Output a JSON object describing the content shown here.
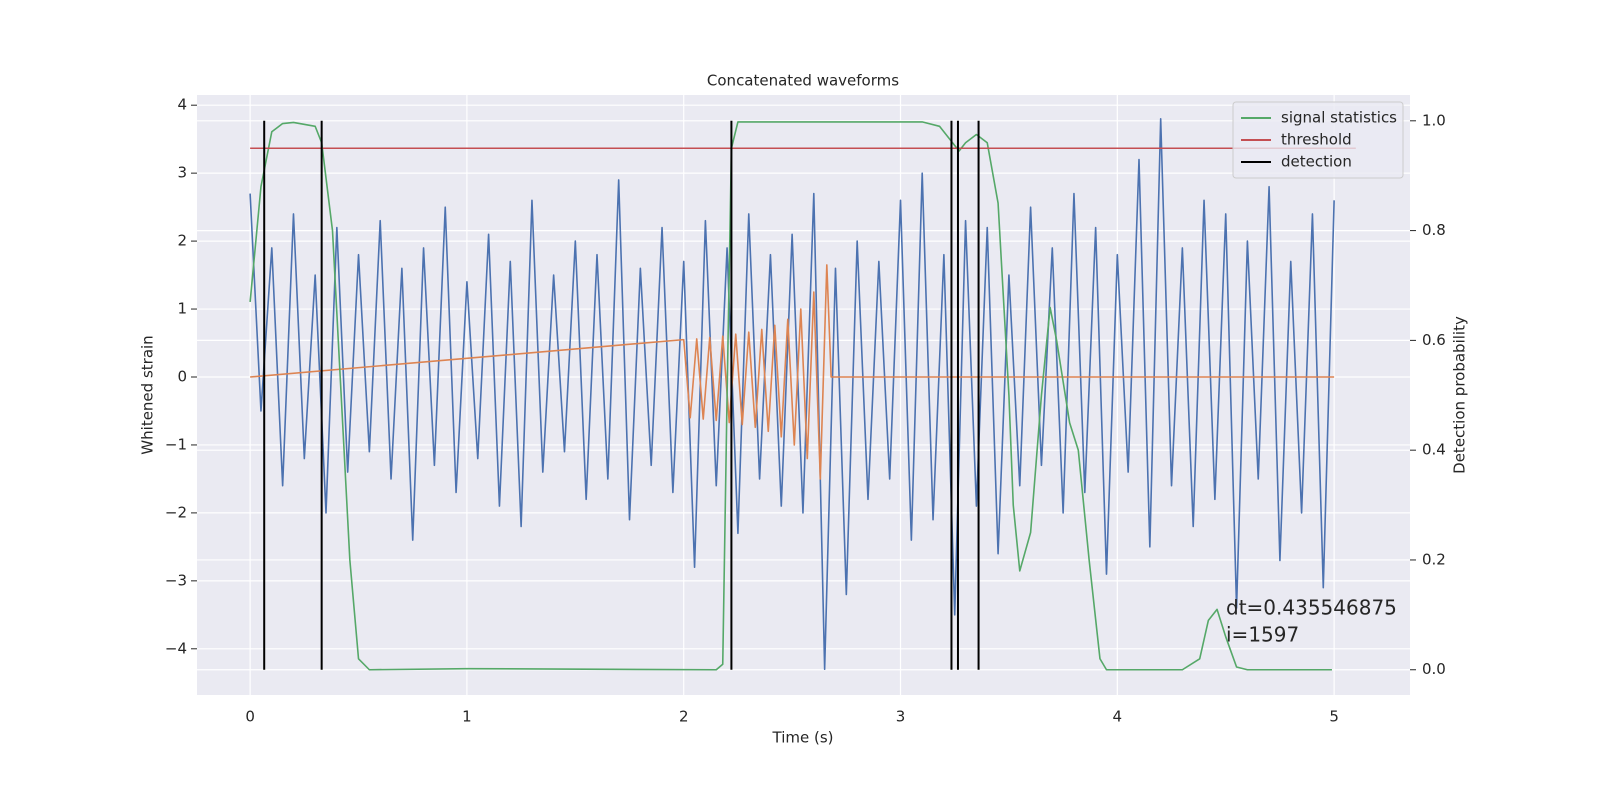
{
  "chart_data": {
    "type": "line",
    "title": "Concatenated waveforms",
    "x_label": "Time (s)",
    "y_label": "Whitened strain",
    "y2_label": "Detection probability",
    "xlim": [
      -0.245,
      5.35
    ],
    "ylim": [
      -4.68,
      4.15
    ],
    "y2lim": [
      -0.046,
      1.047
    ],
    "xticks": [
      0,
      1,
      2,
      3,
      4,
      5
    ],
    "yticks": [
      {
        "value": -4,
        "label": "−4"
      },
      {
        "value": -3,
        "label": "−3"
      },
      {
        "value": -2,
        "label": "−2"
      },
      {
        "value": -1,
        "label": "−1"
      },
      0,
      1,
      2,
      3,
      4
    ],
    "y2ticks": [
      {
        "value": 0,
        "label": "0.0"
      },
      0.2,
      0.4,
      0.6,
      0.8,
      {
        "value": 1,
        "label": "1.0"
      }
    ],
    "grid": true,
    "legend": "upper right",
    "annotation": [
      "dt=0.435546875",
      " i=1597"
    ],
    "series": [
      {
        "color": "#4c72b0",
        "x": [
          0,
          0.05,
          0.1,
          0.15,
          0.2,
          0.25,
          0.3,
          0.35,
          0.4,
          0.45,
          0.5,
          0.55,
          0.6,
          0.65,
          0.7,
          0.75,
          0.8,
          0.85,
          0.9,
          0.95,
          1,
          1.05,
          1.1,
          1.15,
          1.2,
          1.25,
          1.3,
          1.35,
          1.4,
          1.45,
          1.5,
          1.55,
          1.6,
          1.65,
          1.7,
          1.75,
          1.8,
          1.85,
          1.9,
          1.95,
          2,
          2.05,
          2.1,
          2.15,
          2.2,
          2.25,
          2.3,
          2.35,
          2.4,
          2.45,
          2.5,
          2.55,
          2.6,
          2.65,
          2.7,
          2.75,
          2.8,
          2.85,
          2.9,
          2.95,
          3,
          3.05,
          3.1,
          3.15,
          3.2,
          3.25,
          3.3,
          3.35,
          3.4,
          3.45,
          3.5,
          3.55,
          3.6,
          3.65,
          3.7,
          3.75,
          3.8,
          3.85,
          3.9,
          3.95,
          4,
          4.05,
          4.1,
          4.15,
          4.2,
          4.25,
          4.3,
          4.35,
          4.4,
          4.45,
          4.5,
          4.55,
          4.6,
          4.65,
          4.7,
          4.75,
          4.8,
          4.85,
          4.9,
          4.95,
          5
        ],
        "values": [
          2.7,
          -0.5,
          1.9,
          -1.6,
          2.4,
          -1.2,
          1.5,
          -2.0,
          2.2,
          -1.4,
          1.8,
          -1.1,
          2.3,
          -1.5,
          1.6,
          -2.4,
          1.9,
          -1.3,
          2.5,
          -1.7,
          1.4,
          -1.2,
          2.1,
          -1.9,
          1.7,
          -2.2,
          2.6,
          -1.4,
          1.5,
          -1.1,
          2.0,
          -1.8,
          1.8,
          -1.5,
          2.9,
          -2.1,
          1.6,
          -1.3,
          2.2,
          -1.7,
          1.7,
          -2.8,
          2.3,
          -1.6,
          1.9,
          -2.3,
          2.4,
          -1.5,
          1.8,
          -1.9,
          2.1,
          -2.0,
          2.7,
          -4.3,
          1.6,
          -3.2,
          2.0,
          -1.8,
          1.7,
          -1.5,
          2.6,
          -2.4,
          3.0,
          -2.1,
          1.8,
          -3.5,
          2.3,
          -1.9,
          2.2,
          -2.6,
          1.5,
          -1.6,
          2.5,
          -1.3,
          1.9,
          -2.0,
          2.7,
          -1.7,
          2.2,
          -2.9,
          1.8,
          -1.4,
          3.2,
          -2.5,
          3.8,
          -1.6,
          1.9,
          -2.2,
          2.6,
          -1.8,
          2.4,
          -3.4,
          2.0,
          -1.5,
          2.8,
          -2.7,
          1.7,
          -2.0,
          2.4,
          -3.1,
          2.6
        ]
      },
      {
        "color": "#dd8452",
        "x": [
          0,
          2,
          2.03,
          2.06,
          2.09,
          2.12,
          2.15,
          2.18,
          2.21,
          2.24,
          2.27,
          2.3,
          2.33,
          2.36,
          2.39,
          2.42,
          2.45,
          2.48,
          2.51,
          2.54,
          2.57,
          2.6,
          2.63,
          2.66,
          2.68,
          5
        ],
        "values": [
          0,
          0.55,
          -0.6,
          0.56,
          -0.62,
          0.58,
          -0.64,
          0.6,
          -0.67,
          0.63,
          -0.7,
          0.66,
          -0.74,
          0.7,
          -0.8,
          0.76,
          -0.88,
          0.85,
          -1.0,
          1.0,
          -1.2,
          1.25,
          -1.5,
          1.65,
          0,
          0
        ]
      },
      {
        "name": "signal statistics",
        "color": "#55a868",
        "axis": "y2",
        "x": [
          0,
          0.05,
          0.1,
          0.15,
          0.2,
          0.3,
          0.33,
          0.38,
          0.42,
          0.46,
          0.5,
          0.55,
          1.0,
          2.15,
          2.18,
          2.2,
          2.22,
          2.25,
          3.1,
          3.18,
          3.24,
          3.27,
          3.3,
          3.35,
          3.4,
          3.45,
          3.5,
          3.52,
          3.55,
          3.6,
          3.65,
          3.69,
          3.72,
          3.78,
          3.82,
          3.87,
          3.92,
          3.95,
          4.3,
          4.38,
          4.42,
          4.46,
          4.5,
          4.55,
          4.6,
          4.99
        ],
        "values": [
          0.67,
          0.88,
          0.98,
          0.995,
          0.997,
          0.99,
          0.96,
          0.8,
          0.5,
          0.2,
          0.02,
          0,
          0.002,
          0,
          0.01,
          0.5,
          0.95,
          0.998,
          0.998,
          0.99,
          0.96,
          0.945,
          0.96,
          0.975,
          0.96,
          0.85,
          0.5,
          0.3,
          0.18,
          0.25,
          0.5,
          0.66,
          0.6,
          0.45,
          0.4,
          0.2,
          0.02,
          0,
          0,
          0.02,
          0.09,
          0.11,
          0.06,
          0.005,
          0,
          0
        ]
      },
      {
        "name": "threshold",
        "color": "#c44e52",
        "axis": "y2",
        "x": [
          0,
          5.1
        ],
        "values": [
          0.95,
          0.95
        ]
      },
      {
        "name": "detection",
        "color": "#000000",
        "axis": "y2",
        "x": [
          0.065,
          0.33,
          2.22,
          3.235,
          3.265,
          3.36
        ],
        "span": [
          0,
          1
        ]
      }
    ]
  }
}
